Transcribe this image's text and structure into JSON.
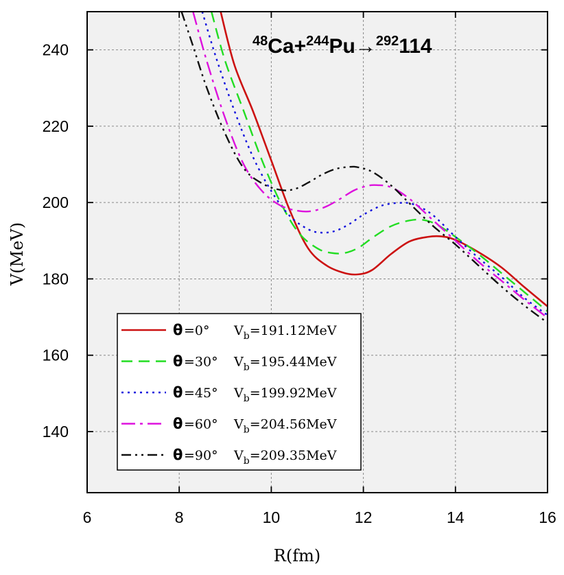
{
  "chart_data": {
    "type": "line",
    "title": {
      "parts": [
        {
          "text": "48",
          "sup": true
        },
        {
          "text": "Ca+",
          "sup": false
        },
        {
          "text": "244",
          "sup": true
        },
        {
          "text": "Pu",
          "sup": false
        },
        {
          "text": "→",
          "sup": false
        },
        {
          "text": "292",
          "sup": true
        },
        {
          "text": "114",
          "sup": false
        }
      ]
    },
    "xlabel": "R(fm)",
    "ylabel": "V(MeV)",
    "xlim": [
      6,
      16
    ],
    "ylim": [
      124,
      250
    ],
    "xticks": [
      "6",
      "8",
      "10",
      "12",
      "14",
      "16"
    ],
    "yticks": [
      "140",
      "160",
      "180",
      "200",
      "220",
      "240"
    ],
    "grid": true,
    "legend_position": "bottom-left",
    "series": [
      {
        "name": "θ=0° V_b=191.12MeV",
        "theta_label": "θ",
        "angle_label": "=0°",
        "vb_label": "V",
        "vb_sub": "b",
        "vb_value": "=191.12MeV",
        "color": "#cc1111",
        "dash": "",
        "x": [
          8.9,
          9.2,
          9.6,
          10.0,
          10.4,
          10.8,
          11.2,
          11.6,
          11.9,
          12.2,
          12.6,
          13.0,
          13.4,
          13.7,
          14.0,
          14.5,
          15.0,
          15.5,
          16.0
        ],
        "y": [
          250,
          236,
          224,
          211,
          198,
          188,
          183.5,
          181.5,
          181.2,
          182.4,
          186.5,
          189.8,
          191.0,
          191.12,
          190.2,
          187.0,
          183.0,
          177.8,
          172.8
        ]
      },
      {
        "name": "θ=30° V_b=195.44MeV",
        "theta_label": "θ",
        "angle_label": "=30°",
        "vb_label": "V",
        "vb_sub": "b",
        "vb_value": "=195.44MeV",
        "color": "#22dd22",
        "dash": "16,9",
        "x": [
          8.7,
          9.0,
          9.4,
          9.8,
          10.2,
          10.6,
          11.0,
          11.3,
          11.6,
          11.9,
          12.2,
          12.6,
          13.0,
          13.3,
          13.6,
          14.0,
          14.5,
          15.0,
          15.5,
          16.0
        ],
        "y": [
          250,
          237,
          224,
          211,
          200,
          192,
          188,
          186.8,
          186.8,
          188.2,
          190.8,
          193.8,
          195.3,
          195.44,
          194.2,
          191.0,
          186.5,
          181.5,
          176.5,
          171.5
        ]
      },
      {
        "name": "θ=45° V_b=199.92MeV",
        "theta_label": "θ",
        "angle_label": "=45°",
        "vb_label": "V",
        "vb_sub": "b",
        "vb_value": "=199.92MeV",
        "color": "#1111dd",
        "dash": "3,6",
        "x": [
          8.5,
          8.8,
          9.2,
          9.6,
          10.0,
          10.4,
          10.8,
          11.1,
          11.4,
          11.7,
          12.0,
          12.4,
          12.8,
          13.1,
          13.5,
          14.0,
          14.5,
          15.0,
          15.5,
          16.0
        ],
        "y": [
          250,
          238,
          224,
          212,
          203,
          196.5,
          193.0,
          192.1,
          192.6,
          194.4,
          196.8,
          199.2,
          199.92,
          199.5,
          196.8,
          191.0,
          185.5,
          180.5,
          175.0,
          170.5
        ]
      },
      {
        "name": "θ=60° V_b=204.56MeV",
        "theta_label": "θ",
        "angle_label": "=60°",
        "vb_label": "V",
        "vb_sub": "b",
        "vb_value": "=204.56MeV",
        "color": "#dd11dd",
        "dash": "20,7,4,7",
        "x": [
          8.3,
          8.6,
          9.0,
          9.4,
          9.8,
          10.2,
          10.6,
          10.9,
          11.2,
          11.5,
          11.8,
          12.1,
          12.3,
          12.6,
          13.0,
          13.5,
          14.0,
          14.5,
          15.0,
          15.5,
          16.0
        ],
        "y": [
          250,
          237,
          222,
          210,
          203,
          199.2,
          197.8,
          197.8,
          199.0,
          201.0,
          203.2,
          204.4,
          204.56,
          204.0,
          201.0,
          195.5,
          190.0,
          184.5,
          179.5,
          174.5,
          169.8
        ]
      },
      {
        "name": "θ=90° V_b=209.35MeV",
        "theta_label": "θ",
        "angle_label": "=90°",
        "vb_label": "V",
        "vb_sub": "b",
        "vb_value": "=209.35MeV",
        "color": "#111111",
        "dash": "14,6,3,6,3,6",
        "x": [
          8.05,
          8.3,
          8.6,
          9.0,
          9.4,
          9.8,
          10.2,
          10.5,
          10.8,
          11.1,
          11.4,
          11.7,
          11.9,
          12.2,
          12.6,
          13.0,
          13.5,
          14.0,
          14.5,
          15.0,
          15.5,
          16.0
        ],
        "y": [
          250,
          241,
          230,
          218,
          209,
          205,
          203.3,
          203.5,
          205.2,
          207.3,
          208.8,
          209.35,
          209.2,
          208.0,
          204.5,
          199.8,
          194.0,
          189.0,
          183.5,
          178.0,
          173.0,
          168.5
        ]
      }
    ]
  }
}
